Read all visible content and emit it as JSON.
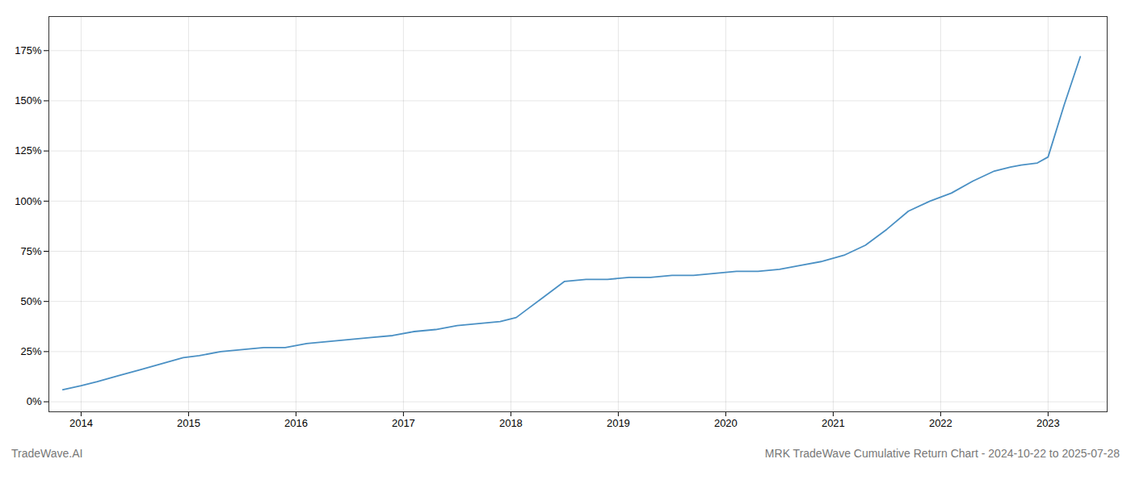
{
  "chart_data": {
    "type": "line",
    "title": "MRK TradeWave Cumulative Return Chart - 2024-10-22 to 2025-07-28",
    "annotations": [
      "TradeWave.AI"
    ],
    "color": "#4a90c4",
    "grid": true,
    "x": [
      2013.83,
      2014.0,
      2014.15,
      2014.35,
      2014.55,
      2014.75,
      2014.95,
      2015.1,
      2015.3,
      2015.5,
      2015.7,
      2015.9,
      2016.1,
      2016.3,
      2016.5,
      2016.7,
      2016.9,
      2017.1,
      2017.3,
      2017.5,
      2017.7,
      2017.9,
      2018.05,
      2018.15,
      2018.3,
      2018.5,
      2018.7,
      2018.9,
      2019.1,
      2019.3,
      2019.5,
      2019.7,
      2019.9,
      2020.1,
      2020.3,
      2020.5,
      2020.7,
      2020.9,
      2021.1,
      2021.3,
      2021.5,
      2021.7,
      2021.9,
      2022.1,
      2022.3,
      2022.5,
      2022.65,
      2022.75,
      2022.9,
      2023.0,
      2023.15,
      2023.3
    ],
    "values": [
      6,
      8,
      10,
      13,
      16,
      19,
      22,
      23,
      25,
      26,
      27,
      27,
      29,
      30,
      31,
      32,
      33,
      35,
      36,
      38,
      39,
      40,
      42,
      46,
      52,
      60,
      61,
      61,
      62,
      62,
      63,
      63,
      64,
      65,
      65,
      66,
      68,
      70,
      73,
      78,
      86,
      95,
      100,
      104,
      110,
      115,
      117,
      118,
      119,
      122,
      148,
      172
    ],
    "xlim": [
      2013.7,
      2023.55
    ],
    "ylim": [
      -5,
      192
    ],
    "xticks": [
      2014,
      2015,
      2016,
      2017,
      2018,
      2019,
      2020,
      2021,
      2022,
      2023
    ],
    "yticks": [
      {
        "value": 0,
        "label": "0%"
      },
      {
        "value": 25,
        "label": "25%"
      },
      {
        "value": 50,
        "label": "50%"
      },
      {
        "value": 75,
        "label": "75%"
      },
      {
        "value": 100,
        "label": "100%"
      },
      {
        "value": 125,
        "label": "125%"
      },
      {
        "value": 150,
        "label": "150%"
      },
      {
        "value": 175,
        "label": "175%"
      }
    ]
  }
}
